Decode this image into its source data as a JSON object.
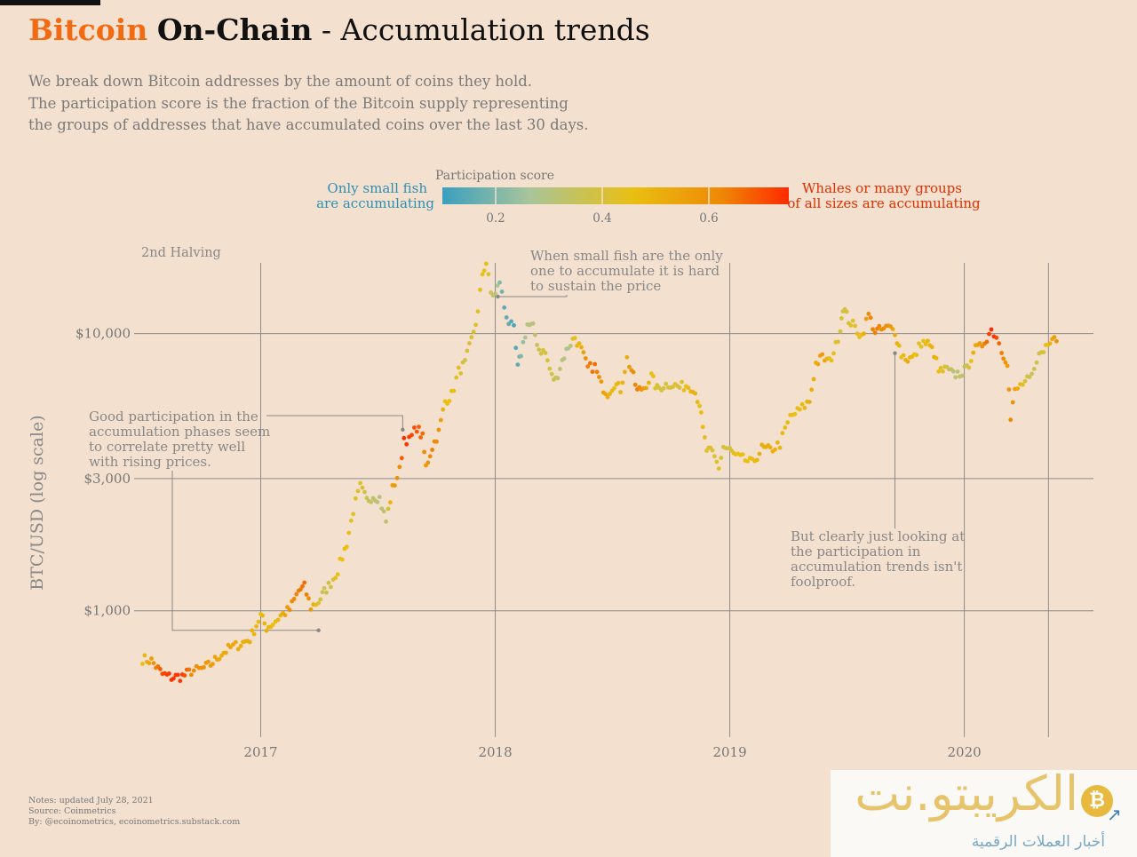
{
  "title": {
    "part1": "Bitcoin",
    "part2": "On-Chain",
    "part3": "- Accumulation trends"
  },
  "subtitle": [
    "We break down Bitcoin addresses by the amount of coins they hold.",
    "The participation score is the fraction of the Bitcoin supply representing",
    "the groups of addresses that have accumulated coins over the last 30 days."
  ],
  "legend": {
    "title": "Participation score",
    "left_label": [
      "Only small fish",
      "are accumulating"
    ],
    "right_label": [
      "Whales or many groups",
      "of all sizes are accumulating"
    ],
    "ticks": [
      "0.2",
      "0.4",
      "0.6"
    ],
    "colors": [
      "#3a9fc0",
      "#a8c49a",
      "#e9bf12",
      "#ee8a06",
      "#ff2a00"
    ]
  },
  "notes": [
    "Notes: updated July 28, 2021",
    "Source: Coinmetrics",
    "By: @ecoinometrics, ecoinometrics.substack.com"
  ],
  "watermark": {
    "brand": "الكريبتو.نت",
    "tagline": "أخبار العملات الرقمية",
    "coin_icon": "bitcoin-coin-icon",
    "arrow_icon": "trend-arrow-icon"
  },
  "chart_data": {
    "type": "scatter",
    "ylabel": "BTC/USD (log scale)",
    "y_scale": "log",
    "ylim": [
      350,
      18000
    ],
    "xlim": [
      "2016-06-18",
      "2020-07-20"
    ],
    "x_ticks": [
      "2017",
      "2018",
      "2019",
      "2020"
    ],
    "y_ticks": [
      {
        "value": 1000,
        "label": "$1,000"
      },
      {
        "value": 3000,
        "label": "$3,000"
      },
      {
        "value": 10000,
        "label": "$10,000"
      }
    ],
    "grid": true,
    "vertical_marker": {
      "date": "2020-05-11",
      "label": "2nd Halving"
    },
    "annotations": [
      {
        "text": [
          "Good participation in the",
          "accumulation phases seem",
          "to correlate pretty well",
          "with rising prices."
        ],
        "points": [
          [
            "2017-04-01",
            850
          ],
          [
            "2017-08-10",
            4500
          ]
        ]
      },
      {
        "text": [
          "When small fish are the only",
          "one to accumulate it is hard",
          "to sustain the price"
        ],
        "points": [
          [
            "2018-01-05",
            13600
          ]
        ]
      },
      {
        "text": [
          "But clearly just looking at",
          "the participation in",
          "accumulation trends isn't",
          "foolproof."
        ],
        "points": [
          [
            "2019-09-15",
            8500
          ]
        ]
      }
    ],
    "series": [
      {
        "points": [
          [
            "2016-07-01",
            670,
            0.45
          ],
          [
            "2016-07-15",
            660,
            0.55
          ],
          [
            "2016-08-01",
            590,
            0.7
          ],
          [
            "2016-08-15",
            575,
            0.74
          ],
          [
            "2016-09-01",
            580,
            0.72
          ],
          [
            "2016-09-15",
            605,
            0.6
          ],
          [
            "2016-10-01",
            615,
            0.58
          ],
          [
            "2016-10-15",
            640,
            0.55
          ],
          [
            "2016-11-01",
            700,
            0.5
          ],
          [
            "2016-11-15",
            735,
            0.52
          ],
          [
            "2016-12-01",
            760,
            0.5
          ],
          [
            "2016-12-15",
            790,
            0.5
          ],
          [
            "2017-01-01",
            960,
            0.45
          ],
          [
            "2017-01-10",
            870,
            0.5
          ],
          [
            "2017-01-20",
            900,
            0.45
          ],
          [
            "2017-02-01",
            960,
            0.48
          ],
          [
            "2017-02-15",
            1010,
            0.58
          ],
          [
            "2017-03-01",
            1180,
            0.62
          ],
          [
            "2017-03-10",
            1220,
            0.65
          ],
          [
            "2017-03-20",
            1030,
            0.55
          ],
          [
            "2017-04-01",
            1080,
            0.4
          ],
          [
            "2017-04-10",
            1170,
            0.35
          ],
          [
            "2017-04-20",
            1260,
            0.38
          ],
          [
            "2017-05-01",
            1400,
            0.45
          ],
          [
            "2017-05-15",
            1750,
            0.45
          ],
          [
            "2017-05-25",
            2300,
            0.42
          ],
          [
            "2017-06-05",
            2800,
            0.42
          ],
          [
            "2017-06-15",
            2500,
            0.35
          ],
          [
            "2017-06-25",
            2600,
            0.32
          ],
          [
            "2017-07-05",
            2550,
            0.3
          ],
          [
            "2017-07-15",
            2100,
            0.32
          ],
          [
            "2017-07-25",
            2750,
            0.55
          ],
          [
            "2017-08-05",
            3200,
            0.6
          ],
          [
            "2017-08-12",
            4200,
            0.75
          ],
          [
            "2017-08-20",
            4100,
            0.72
          ],
          [
            "2017-09-01",
            4600,
            0.68
          ],
          [
            "2017-09-10",
            4200,
            0.65
          ],
          [
            "2017-09-15",
            3300,
            0.55
          ],
          [
            "2017-09-25",
            3900,
            0.62
          ],
          [
            "2017-10-05",
            4400,
            0.58
          ],
          [
            "2017-10-15",
            5700,
            0.45
          ],
          [
            "2017-10-25",
            6000,
            0.45
          ],
          [
            "2017-11-05",
            7300,
            0.42
          ],
          [
            "2017-11-15",
            7800,
            0.38
          ],
          [
            "2017-11-25",
            9500,
            0.4
          ],
          [
            "2017-12-05",
            11800,
            0.42
          ],
          [
            "2017-12-12",
            16500,
            0.45
          ],
          [
            "2017-12-18",
            18000,
            0.45
          ],
          [
            "2017-12-25",
            14000,
            0.35
          ],
          [
            "2018-01-01",
            13800,
            0.3
          ],
          [
            "2018-01-08",
            15500,
            0.2
          ],
          [
            "2018-01-15",
            12500,
            0.15
          ],
          [
            "2018-01-22",
            11000,
            0.15
          ],
          [
            "2018-01-30",
            10300,
            0.12
          ],
          [
            "2018-02-05",
            7500,
            0.15
          ],
          [
            "2018-02-10",
            8500,
            0.2
          ],
          [
            "2018-02-20",
            10800,
            0.28
          ],
          [
            "2018-03-01",
            10500,
            0.3
          ],
          [
            "2018-03-10",
            8800,
            0.36
          ],
          [
            "2018-03-20",
            8500,
            0.4
          ],
          [
            "2018-03-30",
            7000,
            0.38
          ],
          [
            "2018-04-05",
            6800,
            0.35
          ],
          [
            "2018-04-15",
            8000,
            0.3
          ],
          [
            "2018-04-25",
            9000,
            0.25
          ],
          [
            "2018-05-05",
            9700,
            0.45
          ],
          [
            "2018-05-15",
            8700,
            0.5
          ],
          [
            "2018-05-25",
            7500,
            0.62
          ],
          [
            "2018-06-05",
            7600,
            0.65
          ],
          [
            "2018-06-15",
            6500,
            0.55
          ],
          [
            "2018-06-25",
            6100,
            0.5
          ],
          [
            "2018-07-05",
            6600,
            0.45
          ],
          [
            "2018-07-15",
            6300,
            0.48
          ],
          [
            "2018-07-25",
            8100,
            0.5
          ],
          [
            "2018-08-01",
            7400,
            0.58
          ],
          [
            "2018-08-10",
            6200,
            0.62
          ],
          [
            "2018-08-20",
            6400,
            0.55
          ],
          [
            "2018-09-01",
            7000,
            0.45
          ],
          [
            "2018-09-10",
            6300,
            0.4
          ],
          [
            "2018-09-20",
            6500,
            0.38
          ],
          [
            "2018-10-01",
            6600,
            0.4
          ],
          [
            "2018-10-15",
            6400,
            0.4
          ],
          [
            "2018-10-25",
            6500,
            0.45
          ],
          [
            "2018-11-05",
            6400,
            0.5
          ],
          [
            "2018-11-15",
            5600,
            0.45
          ],
          [
            "2018-11-20",
            4500,
            0.45
          ],
          [
            "2018-11-26",
            3800,
            0.42
          ],
          [
            "2018-12-05",
            3700,
            0.4
          ],
          [
            "2018-12-15",
            3300,
            0.42
          ],
          [
            "2018-12-22",
            3900,
            0.38
          ],
          [
            "2019-01-01",
            3800,
            0.38
          ],
          [
            "2019-01-10",
            3600,
            0.45
          ],
          [
            "2019-01-25",
            3500,
            0.45
          ],
          [
            "2019-02-05",
            3400,
            0.45
          ],
          [
            "2019-02-20",
            3850,
            0.5
          ],
          [
            "2019-03-05",
            3800,
            0.5
          ],
          [
            "2019-03-20",
            4000,
            0.48
          ],
          [
            "2019-04-05",
            5000,
            0.45
          ],
          [
            "2019-04-20",
            5300,
            0.45
          ],
          [
            "2019-05-05",
            5700,
            0.5
          ],
          [
            "2019-05-15",
            7800,
            0.5
          ],
          [
            "2019-05-25",
            8200,
            0.55
          ],
          [
            "2019-06-05",
            7900,
            0.45
          ],
          [
            "2019-06-15",
            9000,
            0.42
          ],
          [
            "2019-06-22",
            10500,
            0.4
          ],
          [
            "2019-06-26",
            12500,
            0.38
          ],
          [
            "2019-07-05",
            11200,
            0.4
          ],
          [
            "2019-07-15",
            10500,
            0.42
          ],
          [
            "2019-07-25",
            9800,
            0.45
          ],
          [
            "2019-08-05",
            11700,
            0.6
          ],
          [
            "2019-08-15",
            10200,
            0.62
          ],
          [
            "2019-08-25",
            10300,
            0.6
          ],
          [
            "2019-09-05",
            10500,
            0.58
          ],
          [
            "2019-09-15",
            10200,
            0.5
          ],
          [
            "2019-09-25",
            8400,
            0.45
          ],
          [
            "2019-10-05",
            8100,
            0.5
          ],
          [
            "2019-10-15",
            8200,
            0.45
          ],
          [
            "2019-10-26",
            9300,
            0.42
          ],
          [
            "2019-11-05",
            9200,
            0.48
          ],
          [
            "2019-11-15",
            8500,
            0.5
          ],
          [
            "2019-11-22",
            7300,
            0.45
          ],
          [
            "2019-12-05",
            7400,
            0.38
          ],
          [
            "2019-12-15",
            7100,
            0.3
          ],
          [
            "2019-12-25",
            7200,
            0.32
          ],
          [
            "2020-01-05",
            7400,
            0.35
          ],
          [
            "2020-01-15",
            8700,
            0.5
          ],
          [
            "2020-01-25",
            8900,
            0.55
          ],
          [
            "2020-02-05",
            9700,
            0.65
          ],
          [
            "2020-02-12",
            10300,
            0.78
          ],
          [
            "2020-02-20",
            9800,
            0.7
          ],
          [
            "2020-02-28",
            8700,
            0.62
          ],
          [
            "2020-03-08",
            7900,
            0.55
          ],
          [
            "2020-03-13",
            4900,
            0.6
          ],
          [
            "2020-03-20",
            6200,
            0.55
          ],
          [
            "2020-04-01",
            6600,
            0.42
          ],
          [
            "2020-04-15",
            6900,
            0.35
          ],
          [
            "2020-04-30",
            8800,
            0.38
          ],
          [
            "2020-05-10",
            9000,
            0.45
          ],
          [
            "2020-05-20",
            9800,
            0.55
          ],
          [
            "2020-05-27",
            9000,
            0.6
          ]
        ]
      }
    ]
  }
}
